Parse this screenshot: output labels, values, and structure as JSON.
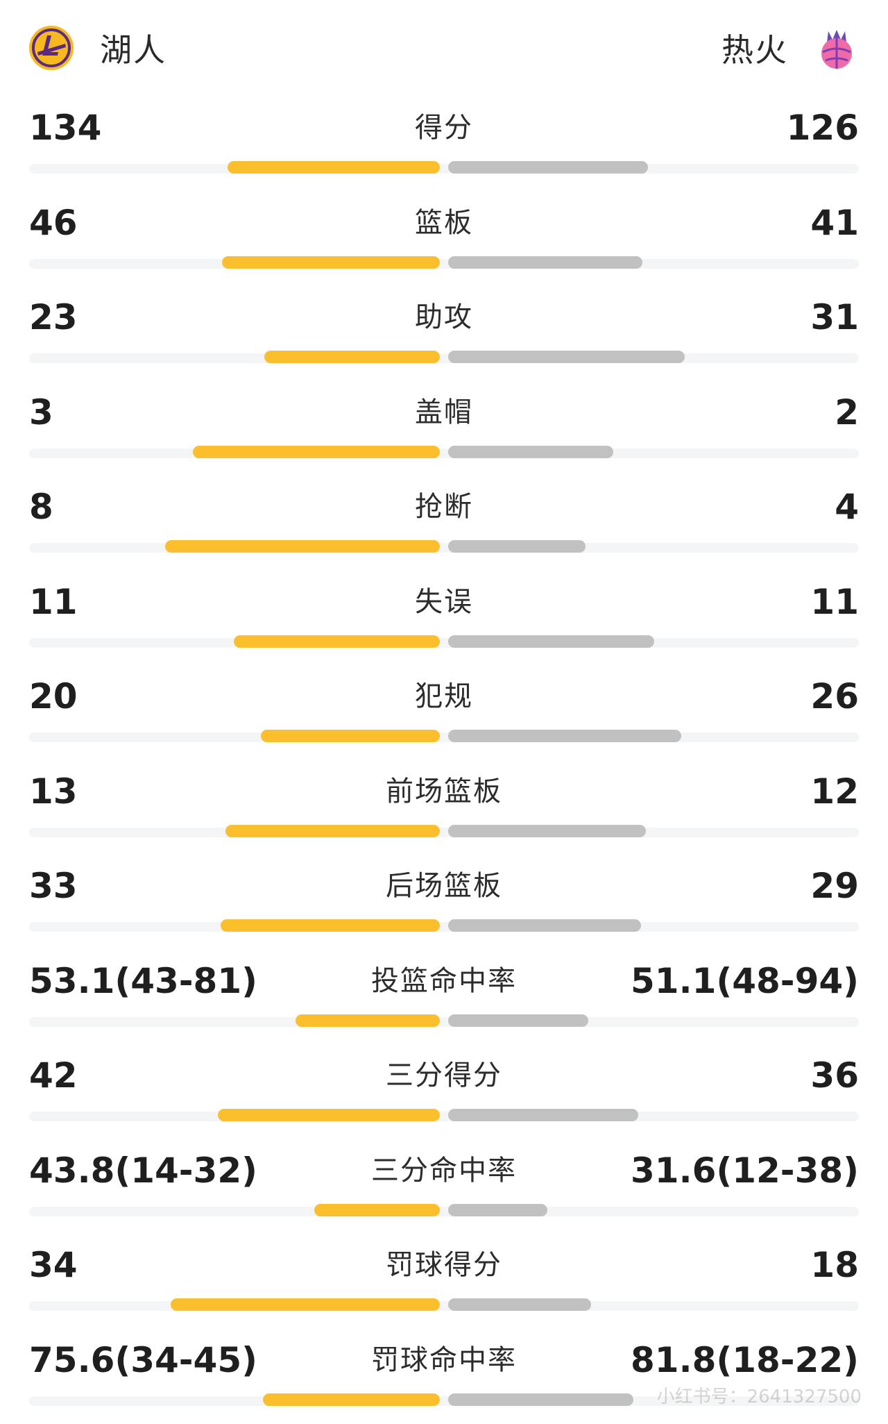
{
  "teams": {
    "home": {
      "name": "湖人",
      "color": "#fbbf2e"
    },
    "away": {
      "name": "热火",
      "color": "#c1c1c1"
    }
  },
  "stats": [
    {
      "label": "得分",
      "home": "134",
      "away": "126",
      "home_share": 0.515,
      "away_share": 0.485
    },
    {
      "label": "篮板",
      "home": "46",
      "away": "41",
      "home_share": 0.529,
      "away_share": 0.471
    },
    {
      "label": "助攻",
      "home": "23",
      "away": "31",
      "home_share": 0.426,
      "away_share": 0.574
    },
    {
      "label": "盖帽",
      "home": "3",
      "away": "2",
      "home_share": 0.6,
      "away_share": 0.4
    },
    {
      "label": "抢断",
      "home": "8",
      "away": "4",
      "home_share": 0.667,
      "away_share": 0.333
    },
    {
      "label": "失误",
      "home": "11",
      "away": "11",
      "home_share": 0.5,
      "away_share": 0.5
    },
    {
      "label": "犯规",
      "home": "20",
      "away": "26",
      "home_share": 0.435,
      "away_share": 0.565
    },
    {
      "label": "前场篮板",
      "home": "13",
      "away": "12",
      "home_share": 0.52,
      "away_share": 0.48
    },
    {
      "label": "后场篮板",
      "home": "33",
      "away": "29",
      "home_share": 0.532,
      "away_share": 0.468
    },
    {
      "label": "投篮命中率",
      "home": "53.1(43-81)",
      "away": "51.1(48-94)",
      "home_share": 0.35,
      "away_share": 0.34
    },
    {
      "label": "三分得分",
      "home": "42",
      "away": "36",
      "home_share": 0.538,
      "away_share": 0.462
    },
    {
      "label": "三分命中率",
      "home": "43.8(14-32)",
      "away": "31.6(12-38)",
      "home_share": 0.305,
      "away_share": 0.24
    },
    {
      "label": "罚球得分",
      "home": "34",
      "away": "18",
      "home_share": 0.654,
      "away_share": 0.346
    },
    {
      "label": "罚球命中率",
      "home": "75.6(34-45)",
      "away": "81.8(18-22)",
      "home_share": 0.43,
      "away_share": 0.45
    }
  ],
  "watermark": "小红书号：2641327500",
  "icons": {
    "home_logo": "lakers-logo-icon",
    "away_logo": "heat-logo-icon"
  }
}
